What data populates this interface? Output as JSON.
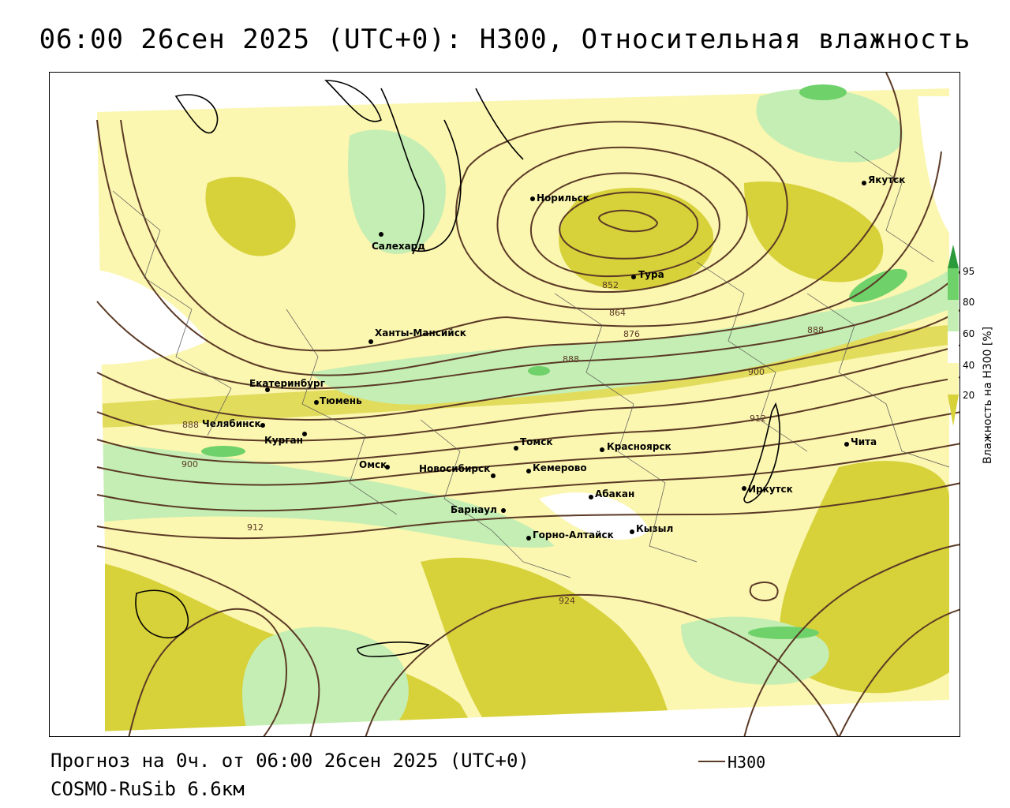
{
  "title": "06:00 26сен 2025 (UTC+0): H300, Относительная влажность",
  "footer": {
    "forecast": "Прогноз на 0ч. от 06:00 26сен 2025 (UTC+0)",
    "model": "COSMO-RuSib 6.6км",
    "legend_label": "H300"
  },
  "colors": {
    "contour": "#5b3a26",
    "rh_20_40": "#fbf6b0",
    "rh_below_20": "#d7d13a",
    "rh_60_80": "#c4eeb3",
    "rh_80_95": "#6fd16a",
    "rh_95": "#2a9a3a"
  },
  "colorbar": {
    "title": "Влажность на H300 [%]",
    "ticks": [
      "95",
      "80",
      "60",
      "40",
      "20"
    ]
  },
  "cities": [
    {
      "name": "Норильск"
    },
    {
      "name": "Якутск"
    },
    {
      "name": "Салехард"
    },
    {
      "name": "Тура"
    },
    {
      "name": "Ханты-Мансийск"
    },
    {
      "name": "Екатеринбург"
    },
    {
      "name": "Тюмень"
    },
    {
      "name": "Челябинск"
    },
    {
      "name": "Курган"
    },
    {
      "name": "Омск"
    },
    {
      "name": "Новосибирск"
    },
    {
      "name": "Томск"
    },
    {
      "name": "Кемерово"
    },
    {
      "name": "Красноярск"
    },
    {
      "name": "Барнаул"
    },
    {
      "name": "Абакан"
    },
    {
      "name": "Горно-Алтайск"
    },
    {
      "name": "Кызыл"
    },
    {
      "name": "Иркутск"
    },
    {
      "name": "Чита"
    }
  ],
  "contour_labels": [
    "852",
    "864",
    "876",
    "888",
    "888",
    "900",
    "912",
    "888",
    "900",
    "912",
    "924"
  ]
}
